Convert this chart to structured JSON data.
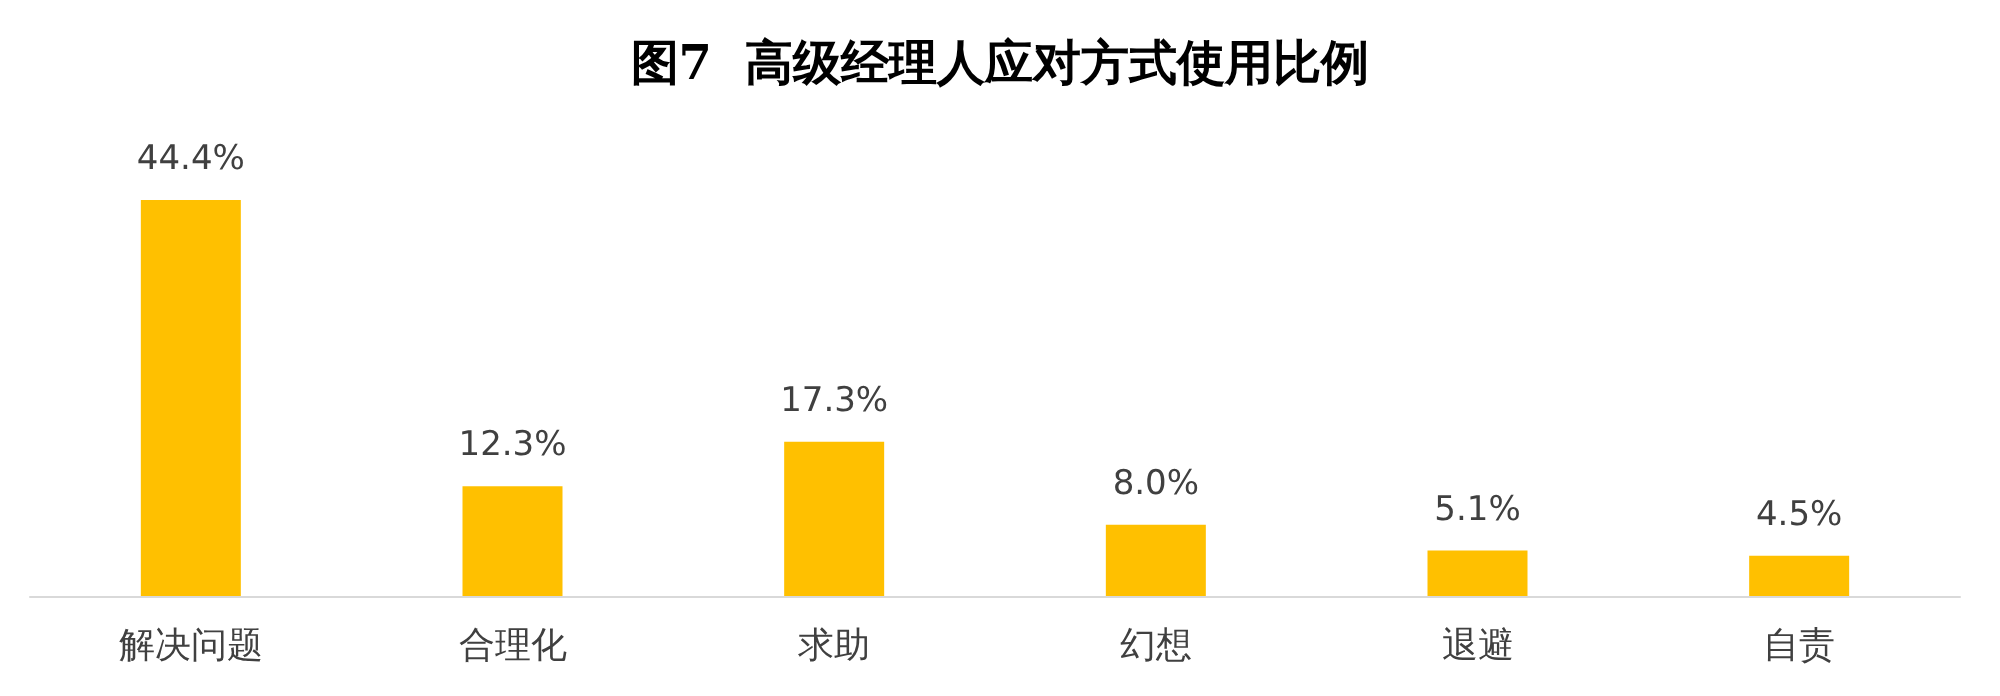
{
  "chart_data": {
    "type": "bar",
    "title": "图7  高级经理人应对方式使用比例",
    "categories": [
      "解决问题",
      "合理化",
      "求助",
      "幻想",
      "退避",
      "自责"
    ],
    "values": [
      44.4,
      12.3,
      17.3,
      8.0,
      5.1,
      4.5
    ],
    "value_labels": [
      "44.4%",
      "12.3%",
      "17.3%",
      "8.0%",
      "5.1%",
      "4.5%"
    ],
    "color": "#ffc000"
  }
}
